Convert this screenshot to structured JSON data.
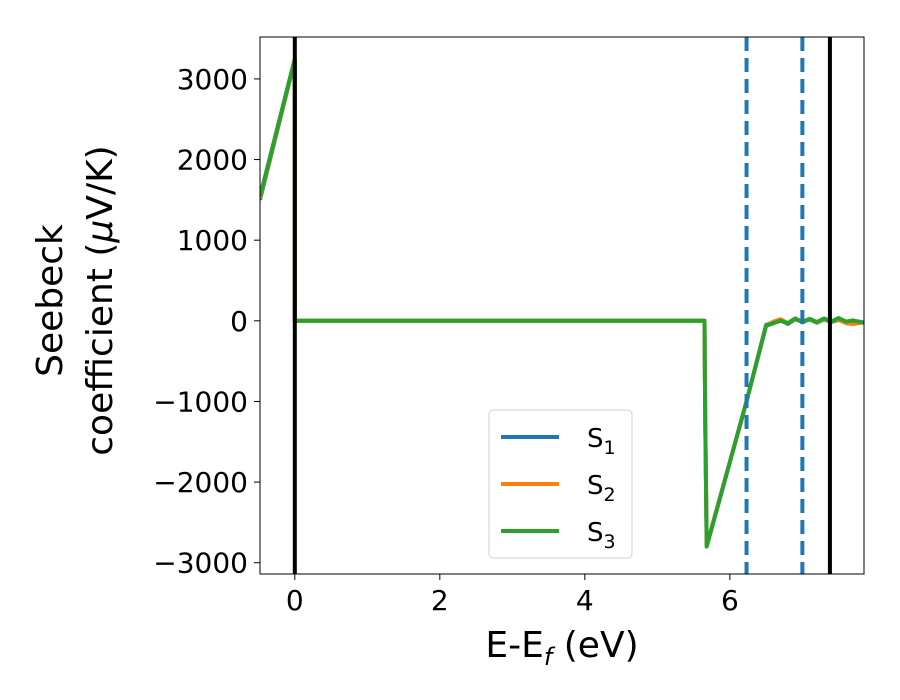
{
  "chart_data": {
    "type": "line",
    "xlabel": "E-E",
    "xlabel_sub": "f",
    "xlabel_unit": " (eV)",
    "ylabel_line1": "Seebeck",
    "ylabel_line2": "coefficient  (",
    "ylabel_mu": "μ",
    "ylabel_tail": "V/K)",
    "xlim": [
      -0.48,
      7.85
    ],
    "ylim": [
      -3140,
      3520
    ],
    "xticks": [
      0,
      2,
      4,
      6
    ],
    "yticks": [
      3000,
      2000,
      1000,
      0,
      -1000,
      -2000,
      -3000
    ],
    "xtick_labels": [
      "0",
      "2",
      "4",
      "6"
    ],
    "ytick_labels": [
      "3000",
      "2000",
      "1000",
      "0",
      "−1000",
      "−2000",
      "−3000"
    ],
    "grid": false,
    "legend_position": "lower-center",
    "vertical_lines": [
      {
        "x": 0.0,
        "style": "solid",
        "color": "#000000"
      },
      {
        "x": 6.23,
        "style": "dashed",
        "color": "#1f77b4"
      },
      {
        "x": 7.0,
        "style": "dashed",
        "color": "#1f77b4"
      },
      {
        "x": 7.38,
        "style": "solid",
        "color": "#000000"
      }
    ],
    "series": [
      {
        "name": "S",
        "sub": "1",
        "color": "#1f77b4",
        "x": [
          -0.48,
          0.0,
          0.0,
          0.01,
          5.65,
          5.66,
          5.68,
          6.23,
          6.5,
          6.6,
          6.7,
          6.8,
          6.9,
          7.0,
          7.1,
          7.2,
          7.3,
          7.4,
          7.5,
          7.6,
          7.7,
          7.85
        ],
        "y": [
          1500,
          3230,
          0,
          0,
          0,
          -1200,
          -2790,
          -1000,
          -50,
          -20,
          10,
          -40,
          20,
          -10,
          15,
          -25,
          20,
          -15,
          10,
          -20,
          0,
          -20
        ]
      },
      {
        "name": "S",
        "sub": "2",
        "color": "#ff7f0e",
        "x": [
          -0.48,
          0.0,
          0.0,
          0.01,
          5.65,
          5.66,
          5.68,
          6.23,
          6.5,
          6.6,
          6.7,
          6.8,
          6.9,
          7.0,
          7.1,
          7.2,
          7.3,
          7.4,
          7.5,
          7.6,
          7.7,
          7.85
        ],
        "y": [
          1520,
          3240,
          0,
          0,
          0,
          -1200,
          -2790,
          -1000,
          -60,
          -10,
          20,
          -30,
          25,
          -5,
          20,
          -20,
          25,
          -10,
          15,
          -30,
          -40,
          -20
        ]
      },
      {
        "name": "S",
        "sub": "3",
        "color": "#2ca02c",
        "x": [
          -0.48,
          0.0,
          0.0,
          0.01,
          5.65,
          5.66,
          5.68,
          6.23,
          6.5,
          6.6,
          6.7,
          6.8,
          6.9,
          7.0,
          7.1,
          7.2,
          7.3,
          7.4,
          7.5,
          7.6,
          7.7,
          7.85
        ],
        "y": [
          1540,
          3250,
          0,
          0,
          0,
          -1200,
          -2800,
          -1000,
          -60,
          -30,
          0,
          -30,
          30,
          -20,
          25,
          -15,
          30,
          -10,
          35,
          -10,
          5,
          -25
        ]
      }
    ]
  }
}
